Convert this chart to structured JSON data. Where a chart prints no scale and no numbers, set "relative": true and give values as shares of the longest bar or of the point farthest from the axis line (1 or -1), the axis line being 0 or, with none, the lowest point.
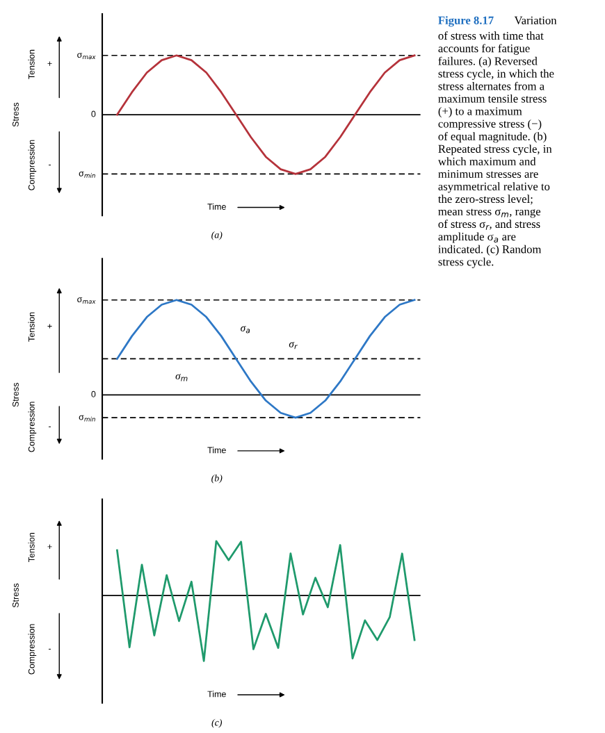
{
  "chart_data": [
    {
      "type": "line",
      "relative": true,
      "line_style": "solid",
      "marker": "none",
      "xlabel": "Time",
      "ylabel": "Stress",
      "categories": [
        null,
        null,
        null,
        null,
        null,
        null,
        null,
        null,
        null,
        null,
        null,
        null,
        null,
        null,
        null,
        null,
        null,
        null,
        null,
        null,
        null
      ],
      "series": [
        {
          "color": "#b5333b",
          "values": [
            0,
            0.38,
            0.71,
            0.92,
            1,
            0.92,
            0.71,
            0.38,
            0,
            -0.38,
            -0.71,
            -0.92,
            -1,
            -0.92,
            -0.71,
            -0.38,
            0,
            0.38,
            0.71,
            0.92,
            1
          ]
        }
      ],
      "ref_lines": [
        {
          "axis": "y",
          "value": 1,
          "label": "σ$_{max}$",
          "line_style": "dashed",
          "color": "#000000"
        },
        {
          "axis": "y",
          "value": 0,
          "label": "0",
          "line_style": "solid",
          "color": "#000000"
        },
        {
          "axis": "y",
          "value": -1,
          "label": "σ$_{min}$",
          "line_style": "dashed",
          "color": "#000000"
        }
      ],
      "annotations": [
        "Tension",
        "+",
        "Compression",
        "-",
        "(a)",
        "Figure 8.17",
        "Variation\nof stress with time that\naccounts for fatigue\nfailures. (a) Reversed\nstress cycle, in which the\nstress alternates from a\nmaximum tensile stress\n(+) to a maximum\ncompressive stress (−)\nof equal magnitude. (b)\nRepeated stress cycle, in\nwhich maximum and\nminimum stresses are\nasymmetrical relative to\nthe zero-stress level;\nmean stress σ$_{m}$, range\nof stress σ$_{r}$, and stress\namplitude σ$_{a}$ are\nindicated. (c) Random\nstress cycle."
      ]
    },
    {
      "type": "line",
      "relative": true,
      "line_style": "solid",
      "marker": "none",
      "xlabel": "Time",
      "ylabel": "Stress",
      "categories": [
        null,
        null,
        null,
        null,
        null,
        null,
        null,
        null,
        null,
        null,
        null,
        null,
        null,
        null,
        null,
        null,
        null,
        null,
        null,
        null,
        null
      ],
      "series": [
        {
          "color": "#2e78c6",
          "values": [
            0.38,
            0.62,
            0.82,
            0.95,
            1,
            0.95,
            0.82,
            0.62,
            0.38,
            0.14,
            -0.06,
            -0.19,
            -0.24,
            -0.19,
            -0.06,
            0.14,
            0.38,
            0.62,
            0.82,
            0.95,
            1
          ]
        }
      ],
      "ref_lines": [
        {
          "axis": "y",
          "value": 1,
          "label": "σ$_{max}$",
          "line_style": "dashed",
          "color": "#000000"
        },
        {
          "axis": "y",
          "value": 0.38,
          "label": null,
          "line_style": "dashed",
          "color": "#000000"
        },
        {
          "axis": "y",
          "value": 0,
          "label": "0",
          "line_style": "solid",
          "color": "#000000"
        },
        {
          "axis": "y",
          "value": -0.24,
          "label": "σ$_{min}$",
          "line_style": "dashed",
          "color": "#000000"
        }
      ],
      "annotations": [
        "Tension",
        "+",
        "Compression",
        "-",
        "(b)",
        "σ$_{a}$",
        "σ$_{r}$",
        "σ$_{m}$"
      ]
    },
    {
      "type": "line",
      "relative": true,
      "line_style": "solid",
      "marker": "none",
      "xlabel": "Time",
      "ylabel": "Stress",
      "categories": [
        null,
        null,
        null,
        null,
        null,
        null,
        null,
        null,
        null,
        null,
        null,
        null,
        null,
        null,
        null,
        null,
        null,
        null,
        null,
        null,
        null,
        null,
        null,
        null,
        null
      ],
      "series": [
        {
          "color": "#1f9a6c",
          "values": [
            0.69,
            -0.79,
            0.47,
            -0.61,
            0.31,
            -0.39,
            0.21,
            -1,
            0.83,
            0.54,
            0.82,
            -0.82,
            -0.28,
            -0.8,
            0.64,
            -0.29,
            0.27,
            -0.18,
            0.77,
            -0.96,
            -0.38,
            -0.68,
            -0.33,
            0.64,
            -0.68
          ]
        }
      ],
      "ref_lines": [
        {
          "axis": "y",
          "value": 0,
          "label": null,
          "line_style": "solid",
          "color": "#000000"
        }
      ],
      "annotations": [
        "Tension",
        "+",
        "Compression",
        "-",
        "(c)"
      ]
    }
  ]
}
